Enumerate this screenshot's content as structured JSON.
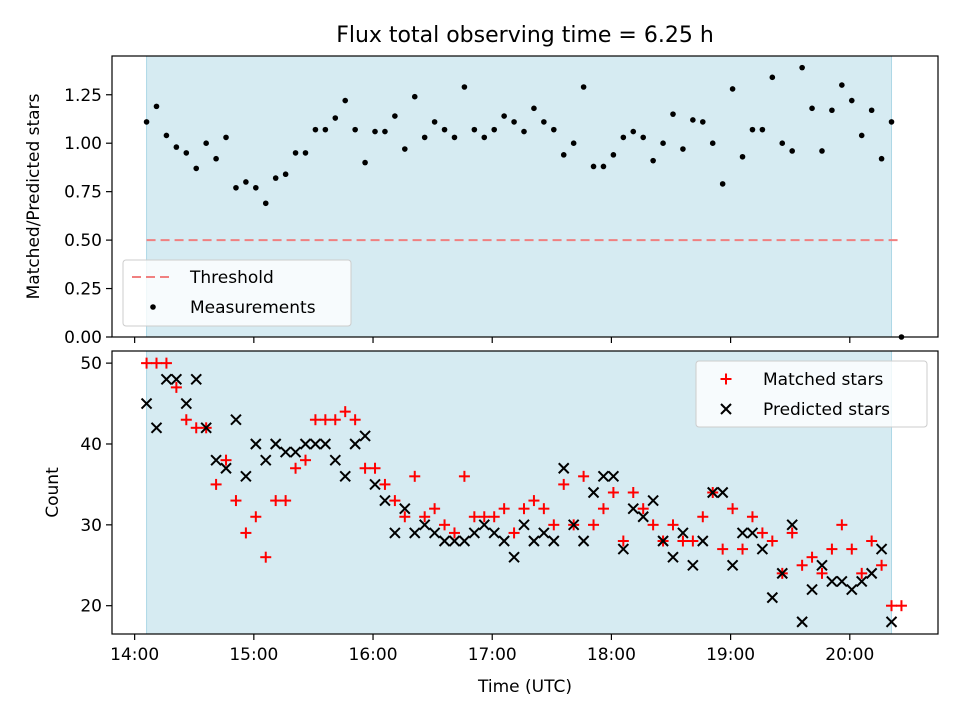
{
  "title": "Flux total observing time = 6.25 h",
  "colors": {
    "band": "#add8e6",
    "threshold": "#f08080",
    "measurement": "#000000",
    "matched": "#ff0000",
    "predicted": "#000000"
  },
  "chart_data": [
    {
      "type": "scatter",
      "ylabel": "Matched/Predicted stars",
      "ylim": [
        0,
        1.45
      ],
      "xlim_hours": [
        13.81,
        20.74
      ],
      "yticks": [
        "0.00",
        "0.25",
        "0.50",
        "0.75",
        "1.00",
        "1.25"
      ],
      "shaded_span": [
        "14:06",
        "20:21"
      ],
      "threshold": 0.5,
      "threshold_span": [
        "14:06",
        "20:26"
      ],
      "legend": [
        "Threshold",
        "Measurements"
      ],
      "legend_position": "lower-left",
      "series": [
        {
          "name": "Measurements",
          "times": [
            "14:06",
            "14:11",
            "14:16",
            "14:21",
            "14:26",
            "14:31",
            "14:36",
            "14:41",
            "14:46",
            "14:51",
            "14:56",
            "15:01",
            "15:06",
            "15:11",
            "15:16",
            "15:21",
            "15:26",
            "15:31",
            "15:36",
            "15:41",
            "15:46",
            "15:51",
            "15:56",
            "16:01",
            "16:06",
            "16:11",
            "16:16",
            "16:21",
            "16:26",
            "16:31",
            "16:36",
            "16:41",
            "16:46",
            "16:51",
            "16:56",
            "17:01",
            "17:06",
            "17:11",
            "17:16",
            "17:21",
            "17:26",
            "17:31",
            "17:36",
            "17:41",
            "17:46",
            "17:51",
            "17:56",
            "18:01",
            "18:06",
            "18:11",
            "18:16",
            "18:21",
            "18:26",
            "18:31",
            "18:36",
            "18:41",
            "18:46",
            "18:51",
            "18:56",
            "19:01",
            "19:06",
            "19:11",
            "19:16",
            "19:21",
            "19:26",
            "19:31",
            "19:36",
            "19:41",
            "19:46",
            "19:51",
            "19:56",
            "20:01",
            "20:06",
            "20:11",
            "20:16",
            "20:21",
            "20:26"
          ],
          "values": [
            1.11,
            1.19,
            1.04,
            0.98,
            0.95,
            0.87,
            1.0,
            0.92,
            1.03,
            0.77,
            0.8,
            0.77,
            0.69,
            0.82,
            0.84,
            0.95,
            0.95,
            1.07,
            1.07,
            1.13,
            1.22,
            1.07,
            0.9,
            1.06,
            1.06,
            1.14,
            0.97,
            1.24,
            1.03,
            1.11,
            1.07,
            1.03,
            1.29,
            1.07,
            1.03,
            1.07,
            1.14,
            1.11,
            1.06,
            1.18,
            1.11,
            1.07,
            0.94,
            1.0,
            1.29,
            0.88,
            0.88,
            0.94,
            1.03,
            1.06,
            1.03,
            0.91,
            1.0,
            1.15,
            0.97,
            1.12,
            1.11,
            1.0,
            0.79,
            1.28,
            0.93,
            1.07,
            1.07,
            1.34,
            1.0,
            0.96,
            1.39,
            1.18,
            0.96,
            1.17,
            1.3,
            1.22,
            1.04,
            1.17,
            0.92,
            1.11,
            0.0
          ]
        }
      ]
    },
    {
      "type": "scatter",
      "xlabel": "Time (UTC)",
      "ylabel": "Count",
      "ylim": [
        16.5,
        51.5
      ],
      "xlim_hours": [
        13.81,
        20.74
      ],
      "yticks": [
        "20",
        "30",
        "40",
        "50"
      ],
      "xticks": [
        "14:00",
        "15:00",
        "16:00",
        "17:00",
        "18:00",
        "19:00",
        "20:00"
      ],
      "legend": [
        "Matched stars",
        "Predicted stars"
      ],
      "legend_position": "upper-right",
      "series": [
        {
          "name": "Matched stars",
          "times": [
            "14:06",
            "14:11",
            "14:16",
            "14:21",
            "14:26",
            "14:31",
            "14:36",
            "14:41",
            "14:46",
            "14:51",
            "14:56",
            "15:01",
            "15:06",
            "15:11",
            "15:16",
            "15:21",
            "15:26",
            "15:31",
            "15:36",
            "15:41",
            "15:46",
            "15:51",
            "15:56",
            "16:01",
            "16:06",
            "16:11",
            "16:16",
            "16:21",
            "16:26",
            "16:31",
            "16:36",
            "16:41",
            "16:46",
            "16:51",
            "16:56",
            "17:01",
            "17:06",
            "17:11",
            "17:16",
            "17:21",
            "17:26",
            "17:31",
            "17:36",
            "17:41",
            "17:46",
            "17:51",
            "17:56",
            "18:01",
            "18:06",
            "18:11",
            "18:16",
            "18:21",
            "18:26",
            "18:31",
            "18:36",
            "18:41",
            "18:46",
            "18:51",
            "18:56",
            "19:01",
            "19:06",
            "19:11",
            "19:16",
            "19:21",
            "19:26",
            "19:31",
            "19:36",
            "19:41",
            "19:46",
            "19:51",
            "19:56",
            "20:01",
            "20:06",
            "20:11",
            "20:16",
            "20:21",
            "20:26"
          ],
          "values": [
            50,
            50,
            50,
            47,
            43,
            42,
            42,
            35,
            38,
            33,
            29,
            31,
            26,
            33,
            33,
            37,
            38,
            43,
            43,
            43,
            44,
            43,
            37,
            37,
            35,
            33,
            31,
            36,
            31,
            32,
            30,
            29,
            36,
            31,
            31,
            31,
            32,
            29,
            32,
            33,
            32,
            30,
            35,
            30,
            36,
            30,
            32,
            34,
            28,
            34,
            32,
            30,
            28,
            30,
            28,
            28,
            31,
            34,
            27,
            32,
            27,
            31,
            29,
            28,
            24,
            29,
            25,
            26,
            24,
            27,
            30,
            27,
            24,
            28,
            25,
            20,
            20
          ]
        },
        {
          "name": "Predicted stars",
          "times": [
            "14:06",
            "14:11",
            "14:16",
            "14:21",
            "14:26",
            "14:31",
            "14:36",
            "14:41",
            "14:46",
            "14:51",
            "14:56",
            "15:01",
            "15:06",
            "15:11",
            "15:16",
            "15:21",
            "15:26",
            "15:31",
            "15:36",
            "15:41",
            "15:46",
            "15:51",
            "15:56",
            "16:01",
            "16:06",
            "16:11",
            "16:16",
            "16:21",
            "16:26",
            "16:31",
            "16:36",
            "16:41",
            "16:46",
            "16:51",
            "16:56",
            "17:01",
            "17:06",
            "17:11",
            "17:16",
            "17:21",
            "17:26",
            "17:31",
            "17:36",
            "17:41",
            "17:46",
            "17:51",
            "17:56",
            "18:01",
            "18:06",
            "18:11",
            "18:16",
            "18:21",
            "18:26",
            "18:31",
            "18:36",
            "18:41",
            "18:46",
            "18:51",
            "18:56",
            "19:01",
            "19:06",
            "19:11",
            "19:16",
            "19:21",
            "19:26",
            "19:31",
            "19:36",
            "19:41",
            "19:46",
            "19:51",
            "19:56",
            "20:01",
            "20:06",
            "20:11",
            "20:16",
            "20:21"
          ],
          "values": [
            45,
            42,
            48,
            48,
            45,
            48,
            42,
            38,
            37,
            43,
            36,
            40,
            38,
            40,
            39,
            39,
            40,
            40,
            40,
            38,
            36,
            40,
            41,
            35,
            33,
            29,
            32,
            29,
            30,
            29,
            28,
            28,
            28,
            29,
            30,
            29,
            28,
            26,
            30,
            28,
            29,
            28,
            37,
            30,
            28,
            34,
            36,
            36,
            27,
            32,
            31,
            33,
            28,
            26,
            29,
            25,
            28,
            34,
            34,
            25,
            29,
            29,
            27,
            21,
            24,
            30,
            18,
            22,
            25,
            23,
            23,
            22,
            23,
            24,
            27,
            18
          ]
        }
      ]
    }
  ]
}
